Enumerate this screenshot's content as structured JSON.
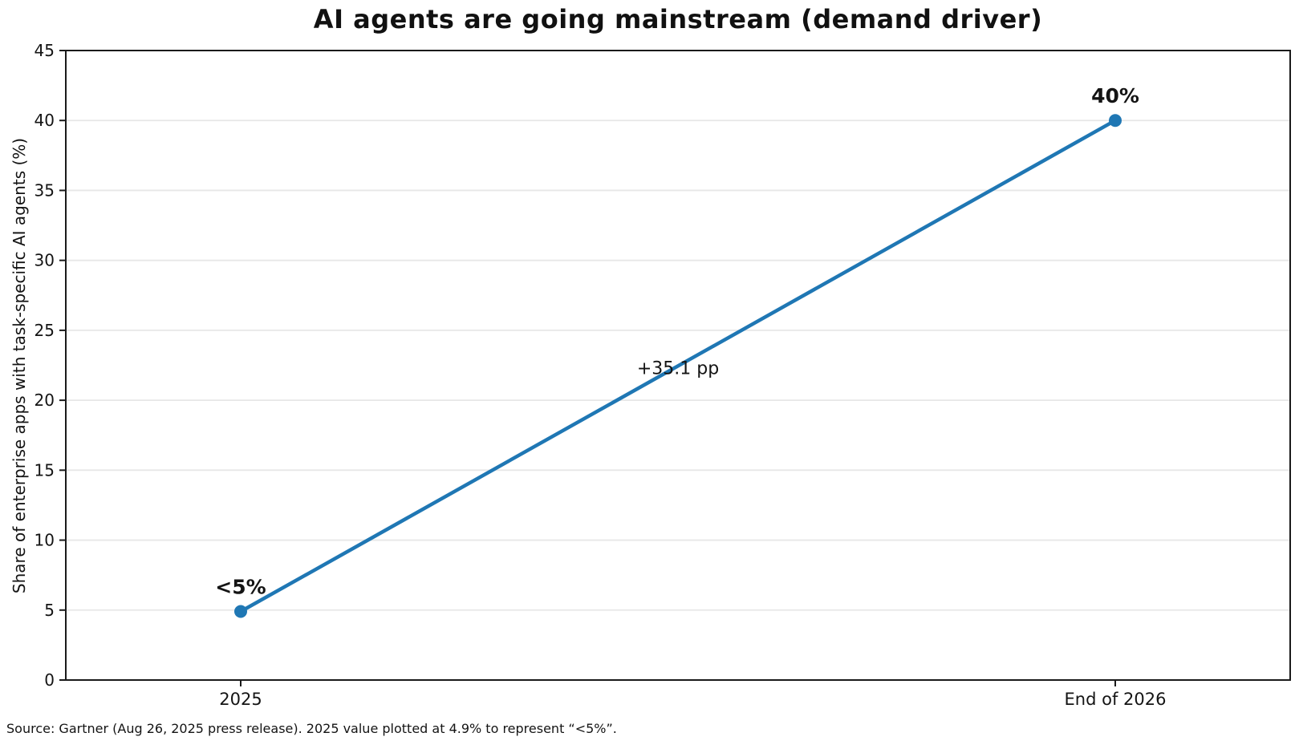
{
  "title": "AI agents are going mainstream (demand driver)",
  "source_note": "Source: Gartner (Aug 26, 2025 press release). 2025 value plotted at 4.9% to represent “<5%”.",
  "chart_data": {
    "type": "line",
    "title": "AI agents are going mainstream (demand driver)",
    "categories": [
      "2025",
      "End of 2026"
    ],
    "values": [
      4.9,
      40
    ],
    "point_labels": [
      "<5%",
      "40%"
    ],
    "midpoint_annotation": "+35.1 pp",
    "xlabel": "",
    "ylabel": "Share of enterprise apps with task-specific AI agents (%)",
    "ylim": [
      0,
      45
    ],
    "yticks": [
      0,
      5,
      10,
      15,
      20,
      25,
      30,
      35,
      40,
      45
    ],
    "grid": "horizontal",
    "legend": "none",
    "line_color": "#1f77b4",
    "grid_color": "#e7e7e7",
    "spine_color": "#1a1a1a",
    "text_color": "#141414"
  }
}
